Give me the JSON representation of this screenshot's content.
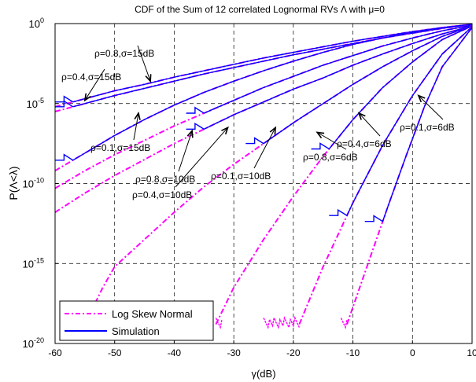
{
  "chart_data": {
    "type": "line",
    "title": "CDF of the Sum of 12 correlated Lognormal RVs Λ with μ=0",
    "xlabel": "γ(dB)",
    "ylabel": "P(Λ<λ)",
    "xlim": [
      -60,
      10
    ],
    "ylim_log10": [
      -20,
      0
    ],
    "yscale": "log",
    "grid": true,
    "x_ticks": [
      -60,
      -50,
      -40,
      -30,
      -20,
      -10,
      0,
      10
    ],
    "x_tick_labels": [
      "-60",
      "-50",
      "-40",
      "-30",
      "-20",
      "-10",
      "0",
      "10"
    ],
    "y_ticks_log10": [
      0,
      -5,
      -10,
      -15,
      -20
    ],
    "y_tick_labels": [
      {
        "base": "10",
        "exp": "0"
      },
      {
        "base": "10",
        "exp": "-5"
      },
      {
        "base": "10",
        "exp": "-10"
      },
      {
        "base": "10",
        "exp": "-15"
      },
      {
        "base": "10",
        "exp": "-20"
      }
    ],
    "legend": {
      "position": "bottom-left",
      "entries": [
        {
          "label": "Log Skew Normal",
          "color": "#ff00ff",
          "style": "dash-dot"
        },
        {
          "label": "Simulation",
          "color": "#0000ff",
          "style": "solid"
        }
      ]
    },
    "colors": {
      "log_skew_normal": "#ff00ff",
      "simulation": "#0000ff"
    },
    "series": [
      {
        "rho": 0.8,
        "sigma_db": 15,
        "x_dB": [
          -60,
          -55,
          -50,
          -45,
          -40,
          -35,
          -30,
          -25,
          -20,
          -15,
          -10,
          -5,
          0,
          5,
          10
        ],
        "log10_p": [
          -5.2,
          -4.7,
          -4.2,
          -3.8,
          -3.35,
          -2.95,
          -2.55,
          -2.15,
          -1.8,
          -1.45,
          -1.1,
          -0.8,
          -0.5,
          -0.25,
          -0.05
        ],
        "sim_start_x": -60
      },
      {
        "rho": 0.4,
        "sigma_db": 15,
        "x_dB": [
          -60,
          -55,
          -50,
          -45,
          -40,
          -35,
          -30,
          -25,
          -20,
          -15,
          -10,
          -5,
          0,
          5,
          10
        ],
        "log10_p": [
          -5.5,
          -5.0,
          -4.5,
          -4.05,
          -3.6,
          -3.15,
          -2.75,
          -2.35,
          -1.95,
          -1.6,
          -1.25,
          -0.9,
          -0.6,
          -0.3,
          -0.05
        ],
        "sim_start_x": -60
      },
      {
        "rho": 0.1,
        "sigma_db": 15,
        "x_dB": [
          -60,
          -55,
          -50,
          -45,
          -40,
          -35,
          -30,
          -25,
          -20,
          -15,
          -10,
          -5,
          0,
          5,
          10
        ],
        "log10_p": [
          -9.2,
          -8.1,
          -7.0,
          -6.0,
          -5.1,
          -4.3,
          -3.6,
          -2.95,
          -2.35,
          -1.8,
          -1.3,
          -0.9,
          -0.55,
          -0.25,
          -0.05
        ],
        "sim_start_x": -60
      },
      {
        "rho": 0.8,
        "sigma_db": 10,
        "x_dB": [
          -60,
          -55,
          -50,
          -45,
          -40,
          -35,
          -30,
          -25,
          -20,
          -15,
          -10,
          -5,
          0,
          5,
          10
        ],
        "log10_p": [
          -10.3,
          -9.2,
          -8.2,
          -7.3,
          -6.4,
          -5.6,
          -4.8,
          -4.0,
          -3.3,
          -2.6,
          -2.0,
          -1.4,
          -0.9,
          -0.45,
          -0.1
        ],
        "sim_start_x": -38
      },
      {
        "rho": 0.4,
        "sigma_db": 10,
        "x_dB": [
          -60,
          -55,
          -50,
          -45,
          -40,
          -35,
          -30,
          -25,
          -20,
          -15,
          -10,
          -5,
          0,
          5,
          10
        ],
        "log10_p": [
          -11.8,
          -10.6,
          -9.5,
          -8.5,
          -7.5,
          -6.6,
          -5.7,
          -4.9,
          -4.1,
          -3.4,
          -2.6,
          -1.9,
          -1.25,
          -0.65,
          -0.15
        ],
        "sim_start_x": -38
      },
      {
        "rho": 0.1,
        "sigma_db": 10,
        "x_dB": [
          -55,
          -52,
          -50,
          -45,
          -40,
          -35,
          -30,
          -25,
          -20,
          -15,
          -10,
          -5,
          0,
          5,
          10
        ],
        "log10_p": [
          -18.8,
          -16.5,
          -15.2,
          -13.5,
          -11.8,
          -10.2,
          -8.8,
          -7.5,
          -6.2,
          -5.0,
          -3.8,
          -2.7,
          -1.7,
          -0.8,
          -0.15
        ],
        "sim_start_x": -28
      },
      {
        "rho": 0.8,
        "sigma_db": 6,
        "x_dB": [
          -33,
          -30,
          -25,
          -20,
          -15,
          -10,
          -5,
          0,
          5,
          10
        ],
        "log10_p": [
          -18.8,
          -16.5,
          -13.5,
          -10.8,
          -8.3,
          -6.0,
          -4.0,
          -2.4,
          -1.0,
          -0.15
        ],
        "sim_start_x": -17
      },
      {
        "rho": 0.4,
        "sigma_db": 6,
        "x_dB": [
          -19,
          -15,
          -10,
          -5,
          0,
          5,
          10
        ],
        "log10_p": [
          -18.8,
          -15.2,
          -11.2,
          -7.6,
          -4.5,
          -1.9,
          -0.2
        ],
        "sim_start_x": -14
      },
      {
        "rho": 0.1,
        "sigma_db": 6,
        "x_dB": [
          -11,
          -7,
          -4,
          -1,
          2,
          5,
          10
        ],
        "log10_p": [
          -18.8,
          -14.5,
          -11.3,
          -8.2,
          -5.2,
          -2.7,
          -0.25
        ],
        "sim_start_x": -8
      }
    ],
    "noise_floors": [
      {
        "x_from": -56,
        "x_to": -48
      },
      {
        "x_from": -33,
        "x_to": -32
      },
      {
        "x_from": -25,
        "x_to": -19
      },
      {
        "x_from": -12,
        "x_to": -11
      }
    ],
    "annotations": [
      {
        "rho": "0.8",
        "sigma": "15dB",
        "arrow_x": -44,
        "arrow_log10p": -3.6
      },
      {
        "rho": "0.4",
        "sigma": "15dB",
        "arrow_x": -55,
        "arrow_log10p": -4.8
      },
      {
        "rho": "0.1",
        "sigma": "15dB",
        "arrow_x": -46,
        "arrow_log10p": -5.6
      },
      {
        "rho": "0.8",
        "sigma": "10dB",
        "arrow_x": -37,
        "arrow_log10p": -6.7
      },
      {
        "rho": "0.4",
        "sigma": "10dB",
        "arrow_x": -31,
        "arrow_log10p": -6.5
      },
      {
        "rho": "0.1",
        "sigma": "10dB",
        "arrow_x": -23,
        "arrow_log10p": -6.5
      },
      {
        "rho": "0.8",
        "sigma": "6dB",
        "arrow_x": -16,
        "arrow_log10p": -6.8
      },
      {
        "rho": "0.4",
        "sigma": "6dB",
        "arrow_x": -9,
        "arrow_log10p": -5.6
      },
      {
        "rho": "0.1",
        "sigma": "6dB",
        "arrow_x": 1,
        "arrow_log10p": -4.5
      }
    ]
  }
}
